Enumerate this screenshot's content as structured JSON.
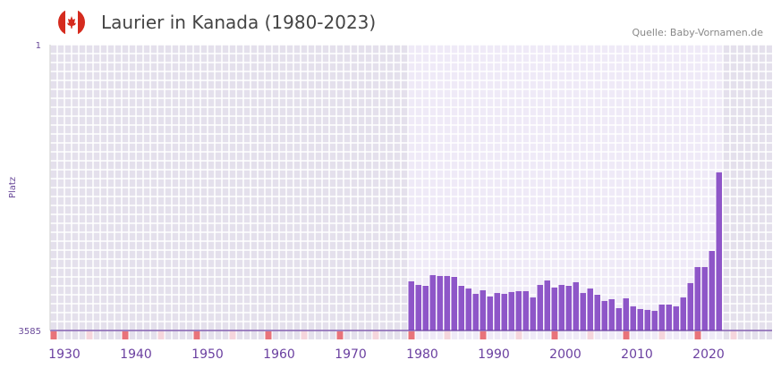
{
  "header": {
    "title": "Laurier in Kanada (1980-2023)",
    "source": "Quelle: Baby-Vornamen.de",
    "flag_icon": "canada-flag-icon"
  },
  "colors": {
    "bar": "#8e56c8",
    "axis": "#6a3fa0",
    "marker": "#e8737a",
    "marker_light": "#f5d5dc",
    "bg_out": "#e4e0ec",
    "bg_in": "#efeaf7"
  },
  "chart_data": {
    "type": "bar",
    "title": "Laurier in Kanada (1980-2023)",
    "xlabel": "",
    "ylabel": "Platz",
    "ylim": [
      3585,
      1
    ],
    "xlim": [
      1930,
      2030
    ],
    "y_ticks": [
      "1",
      "3585"
    ],
    "x_ticks": [
      "1930",
      "1940",
      "1950",
      "1960",
      "1970",
      "1980",
      "1990",
      "2000",
      "2010",
      "2020"
    ],
    "x": [
      1980,
      1981,
      1982,
      1983,
      1984,
      1985,
      1986,
      1987,
      1988,
      1989,
      1990,
      1991,
      1992,
      1993,
      1994,
      1995,
      1996,
      1997,
      1998,
      1999,
      2000,
      2001,
      2002,
      2003,
      2004,
      2005,
      2006,
      2007,
      2008,
      2009,
      2010,
      2011,
      2012,
      2013,
      2014,
      2015,
      2016,
      2017,
      2018,
      2019,
      2020,
      2021,
      2022,
      2023
    ],
    "values": [
      2969,
      3014,
      3025,
      2891,
      2902,
      2902,
      2913,
      3025,
      3059,
      3126,
      3081,
      3159,
      3115,
      3126,
      3103,
      3092,
      3092,
      3171,
      3014,
      2958,
      3047,
      3014,
      3025,
      2980,
      3115,
      3059,
      3137,
      3215,
      3193,
      3305,
      3182,
      3283,
      3316,
      3327,
      3339,
      3260,
      3260,
      3283,
      3171,
      2991,
      2790,
      2790,
      2588,
      1603
    ],
    "grid": true
  }
}
